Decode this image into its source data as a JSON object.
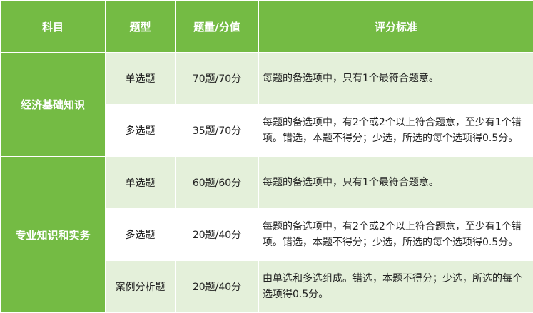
{
  "colors": {
    "header": "#74bb44",
    "light_row": "#e4f0da",
    "white_row": "#ffffff"
  },
  "headers": [
    "科目",
    "题型",
    "题量/分值",
    "评分标准"
  ],
  "subjects": [
    {
      "name": "经济基础知识",
      "rows": [
        {
          "type": "单选题",
          "count": "70题/70分",
          "criteria": "每题的备选项中，只有1个最符合题意。"
        },
        {
          "type": "多选题",
          "count": "35题/70分",
          "criteria": "每题的备选项中，有2个或2个以上符合题意，至少有1个错项。错选，本题不得分；少选，所选的每个选项得0.5分。"
        }
      ]
    },
    {
      "name": "专业知识和实务",
      "rows": [
        {
          "type": "单选题",
          "count": "60题/60分",
          "criteria": "每题的备选项中，只有1个最符合题意。"
        },
        {
          "type": "多选题",
          "count": "20题/40分",
          "criteria": "每题的备选项中，有2个或2个以上符合题意，至少有1个错项。错选，本题不得分；少选，所选的每个选项得0.5分。"
        },
        {
          "type": "案例分析题",
          "count": "20题/40分",
          "criteria": "由单选和多选组成。错选，本题不得分；少选，所选的每个选项得0.5分。"
        }
      ]
    }
  ]
}
